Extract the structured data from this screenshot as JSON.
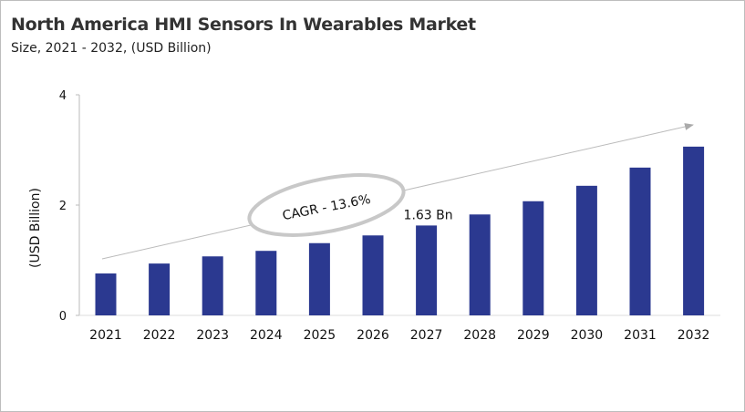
{
  "chart_data": {
    "type": "bar",
    "title": "North America HMI Sensors In Wearables Market",
    "subtitle": "Size, 2021 - 2032, (USD Billion)",
    "xlabel": "",
    "ylabel": "(USD Billion)",
    "ylim": [
      0,
      4
    ],
    "yticks": [
      "0",
      "2",
      "4"
    ],
    "grid": false,
    "categories": [
      "2021",
      "2022",
      "2023",
      "2024",
      "2025",
      "2026",
      "2027",
      "2028",
      "2029",
      "2030",
      "2031",
      "2032"
    ],
    "values": [
      0.76,
      0.94,
      1.07,
      1.17,
      1.31,
      1.45,
      1.63,
      1.83,
      2.07,
      2.35,
      2.68,
      3.06
    ],
    "bar_color": "#2b3990",
    "annotations": {
      "cagr": "CAGR - 13.6%",
      "data_label": "1.63 Bn",
      "data_label_category": "2027"
    }
  }
}
